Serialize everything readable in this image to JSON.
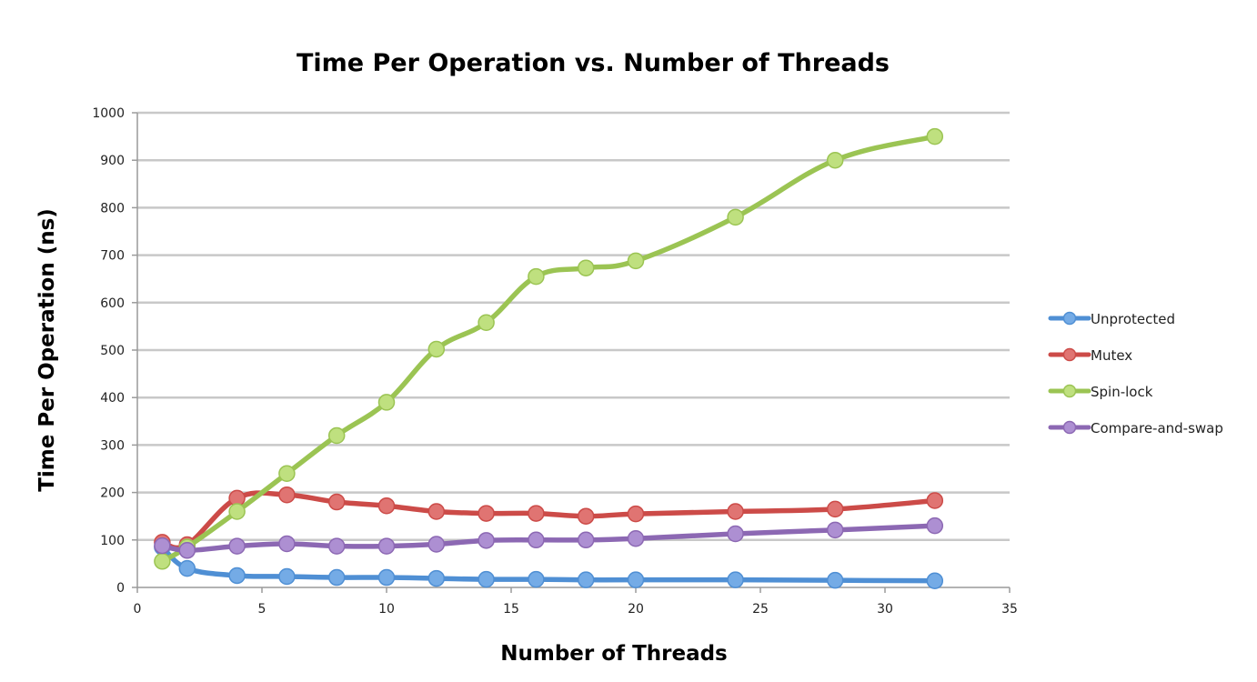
{
  "chart_data": {
    "type": "line",
    "title": "Time Per Operation vs. Number of Threads",
    "xlabel": "Number of Threads",
    "ylabel": "Time Per Operation (ns)",
    "xlim": [
      0,
      35
    ],
    "ylim": [
      0,
      1000
    ],
    "xticks": [
      0,
      5,
      10,
      15,
      20,
      25,
      30,
      35
    ],
    "yticks": [
      0,
      100,
      200,
      300,
      400,
      500,
      600,
      700,
      800,
      900,
      1000
    ],
    "x": [
      1,
      2,
      4,
      6,
      8,
      10,
      12,
      14,
      16,
      18,
      20,
      24,
      28,
      32
    ],
    "grid": "horizontal",
    "legend_position": "right",
    "series": [
      {
        "name": "Unprotected",
        "color": "#4f8fd4",
        "marker_fill": "#74abe6",
        "values": [
          85,
          40,
          25,
          23,
          21,
          21,
          19,
          17,
          17,
          16,
          16,
          16,
          15,
          14
        ]
      },
      {
        "name": "Mutex",
        "color": "#cc4b48",
        "marker_fill": "#e07472",
        "values": [
          95,
          90,
          188,
          195,
          180,
          172,
          160,
          156,
          156,
          150,
          155,
          160,
          165,
          183
        ]
      },
      {
        "name": "Spin-lock",
        "color": "#9bc453",
        "marker_fill": "#bfe07f",
        "values": [
          55,
          85,
          160,
          240,
          320,
          390,
          502,
          558,
          655,
          673,
          688,
          780,
          900,
          950
        ]
      },
      {
        "name": "Compare-and-swap",
        "color": "#8c68b3",
        "marker_fill": "#ad8fd2",
        "values": [
          88,
          78,
          87,
          92,
          87,
          87,
          91,
          99,
          100,
          100,
          103,
          113,
          121,
          130
        ]
      }
    ]
  }
}
